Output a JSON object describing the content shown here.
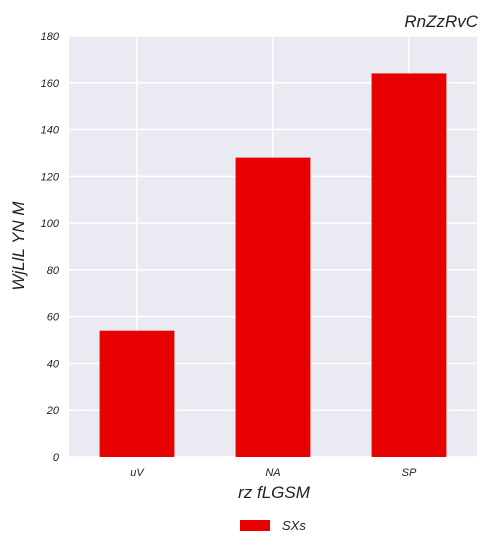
{
  "chart_data": {
    "type": "bar",
    "title": "RnZzRvC",
    "xlabel": "rz fLGSM",
    "ylabel": "WjLlL YN M",
    "categories": [
      "uV",
      "NA",
      "SP"
    ],
    "series": [
      {
        "name": "SXs",
        "values": [
          54,
          128,
          164
        ],
        "color": "#e60000"
      }
    ],
    "ylim": [
      0,
      180
    ],
    "yticks": [
      0,
      20,
      40,
      60,
      80,
      100,
      120,
      140,
      160,
      180
    ],
    "grid": true,
    "legend_position": "bottom-center",
    "background": "#eaeaf2"
  }
}
